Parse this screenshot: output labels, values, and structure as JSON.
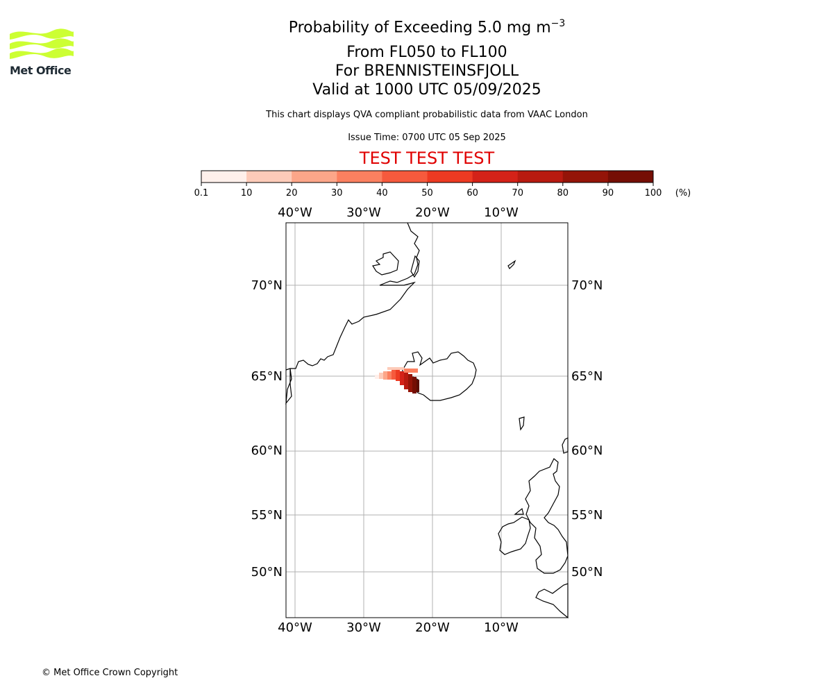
{
  "header": {
    "title_main": "Probability of Exceeding 5.0 mg m",
    "title_sup": "−3",
    "level_range": "From FL050 to FL100",
    "volcano": "For BRENNISTEINSFJOLL",
    "valid_time": "Valid at 1000 UTC 05/09/2025",
    "subtitle": "This chart displays QVA compliant probabilistic data from VAAC London",
    "issue_time": "Issue Time: 0700 UTC 05 Sep 2025",
    "test_banner": "TEST TEST TEST"
  },
  "logo": {
    "text": "Met Office",
    "color": "#ccff33"
  },
  "colorbar": {
    "ticks": [
      "0.1",
      "10",
      "20",
      "30",
      "40",
      "50",
      "60",
      "70",
      "80",
      "90",
      "100"
    ],
    "unit": "(%)",
    "colors": [
      "#fff0eb",
      "#fdcbb9",
      "#fca689",
      "#fb8060",
      "#f65a3d",
      "#ed3a22",
      "#d42218",
      "#b81a10",
      "#941408",
      "#750e04",
      "#5a0e04"
    ]
  },
  "map": {
    "lon_labels": [
      "40°W",
      "30°W",
      "20°W",
      "10°W"
    ],
    "lat_labels": [
      "70°N",
      "65°N",
      "60°N",
      "55°N",
      "50°N"
    ]
  },
  "footer": {
    "copyright": "© Met Office Crown Copyright"
  }
}
